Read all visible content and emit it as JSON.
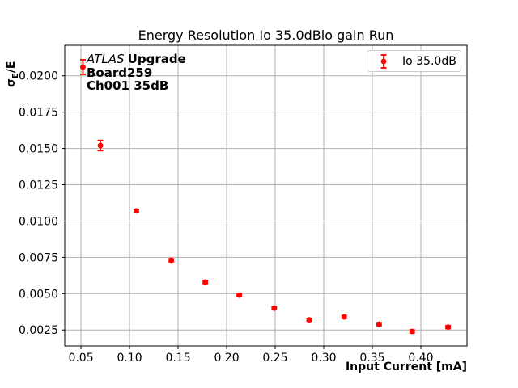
{
  "figure": {
    "background": "#ffffff"
  },
  "chart_data": {
    "type": "scatter",
    "title": "Energy Resolution Io 35.0dBlo gain Run",
    "xlabel": "Input Current [mA]",
    "ylabel": "σE/E",
    "ylabel_parts": {
      "sigma": "σ",
      "sub": "E",
      "rest": "/E"
    },
    "xlim": [
      0.0333,
      0.4475
    ],
    "ylim": [
      0.0014,
      0.0221
    ],
    "grid": true,
    "legend_position": "upper right",
    "x_ticks": [
      0.05,
      0.1,
      0.15,
      0.2,
      0.25,
      0.3,
      0.35,
      0.4
    ],
    "x_tick_labels": [
      "0.05",
      "0.10",
      "0.15",
      "0.20",
      "0.25",
      "0.30",
      "0.35",
      "0.40"
    ],
    "y_ticks": [
      0.0025,
      0.005,
      0.0075,
      0.01,
      0.0125,
      0.015,
      0.0175,
      0.02
    ],
    "y_tick_labels": [
      "0.0025",
      "0.0050",
      "0.0075",
      "0.0100",
      "0.0125",
      "0.0150",
      "0.0175",
      "0.0200"
    ],
    "series": [
      {
        "name": "Io 35.0dB",
        "color": "#ff0000",
        "marker": "circle-with-errorbar",
        "x": [
          0.052,
          0.07,
          0.107,
          0.143,
          0.178,
          0.213,
          0.249,
          0.285,
          0.321,
          0.357,
          0.391,
          0.428
        ],
        "y": [
          0.0206,
          0.0152,
          0.0107,
          0.0073,
          0.0058,
          0.0049,
          0.004,
          0.0032,
          0.0034,
          0.0029,
          0.0024,
          0.0027
        ],
        "yerr": [
          0.0005,
          0.00035,
          0.0001,
          0.0001,
          0.0001,
          0.0001,
          0.0001,
          0.0001,
          0.0001,
          0.0001,
          0.0001,
          0.0001
        ]
      }
    ]
  },
  "legend": {
    "label": "Io 35.0dB",
    "marker_color": "#ff0000"
  },
  "annotation": {
    "line1_italic": "ATLAS",
    "line1_bold": "Upgrade",
    "line2": "Board259",
    "line3": "Ch001 35dB"
  },
  "colors": {
    "data": "#ff0000",
    "grid": "#b0b0b0",
    "spine": "#000000",
    "legend_border": "#cccccc",
    "text": "#000000"
  }
}
